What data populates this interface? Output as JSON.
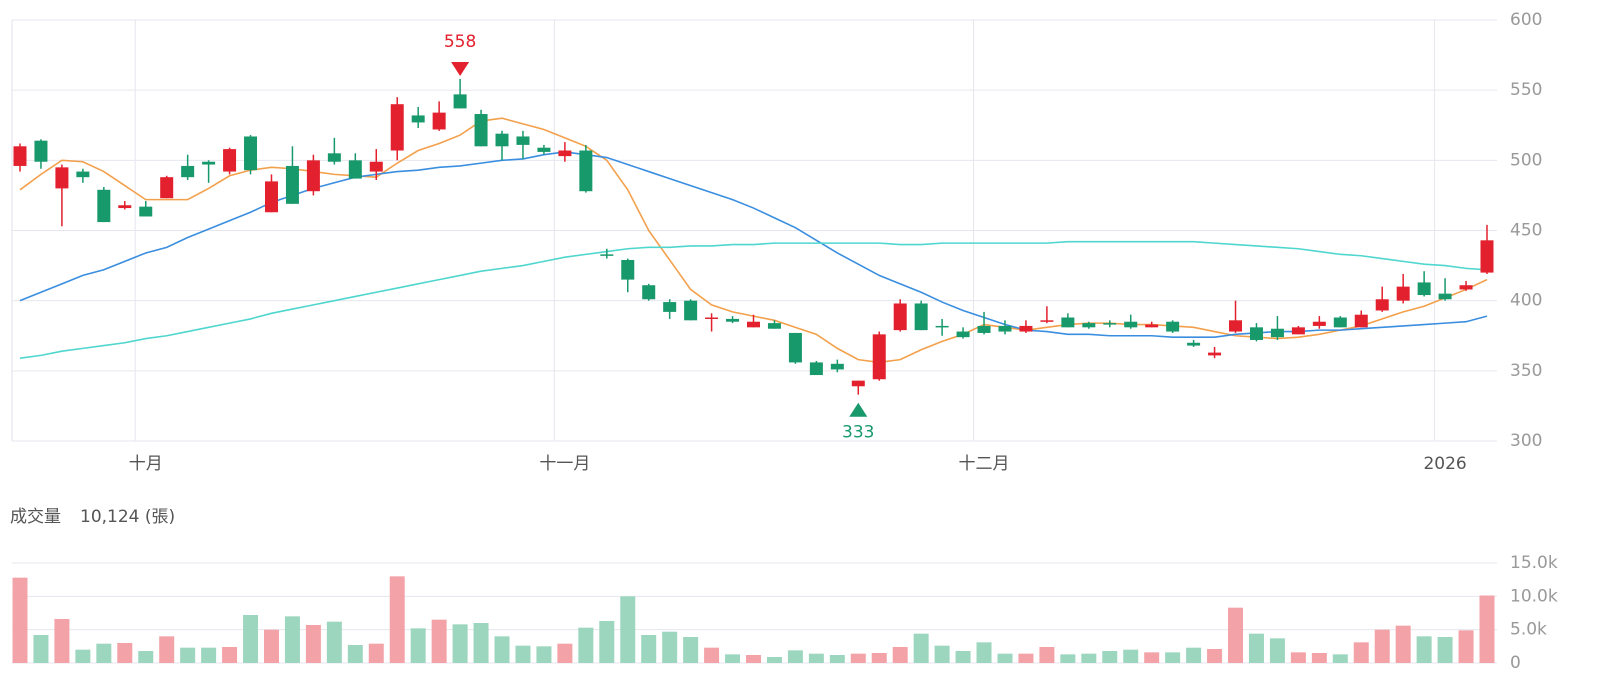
{
  "chart_data": [
    {
      "type": "candlestick",
      "categories": [
        null,
        null,
        null,
        null,
        null,
        null,
        "十月",
        null,
        null,
        null,
        null,
        null,
        null,
        null,
        null,
        null,
        null,
        null,
        null,
        null,
        null,
        null,
        null,
        null,
        null,
        null,
        "十一月",
        null,
        null,
        null,
        null,
        null,
        null,
        null,
        null,
        null,
        null,
        null,
        null,
        null,
        null,
        null,
        null,
        null,
        null,
        null,
        "十二月",
        null,
        null,
        null,
        null,
        null,
        null,
        null,
        null,
        null,
        null,
        null,
        null,
        null,
        null,
        null,
        null,
        null,
        null,
        null,
        null,
        null,
        "2026",
        null,
        null
      ],
      "open": [
        496,
        514,
        480,
        492,
        479,
        466,
        467,
        473,
        496,
        499,
        492,
        517,
        463,
        496,
        478,
        505,
        500,
        492,
        507,
        532,
        522,
        547,
        533,
        519,
        517,
        509,
        503,
        507,
        433,
        429,
        411,
        399,
        400,
        387,
        387,
        381,
        384,
        377,
        356,
        355,
        339,
        344,
        379,
        398,
        382,
        378,
        382,
        382,
        378,
        385,
        388,
        384,
        384,
        385,
        381,
        385,
        370,
        361,
        378,
        381,
        380,
        376,
        382,
        388,
        381,
        393,
        400,
        413,
        405,
        408,
        420
      ],
      "high": [
        512,
        515,
        497,
        494,
        481,
        471,
        471,
        489,
        504,
        500,
        509,
        518,
        490,
        510,
        504,
        516,
        505,
        508,
        545,
        538,
        542,
        558,
        536,
        521,
        521,
        511,
        513,
        511,
        437,
        430,
        412,
        401,
        401,
        391,
        389,
        390,
        386,
        377,
        357,
        358,
        343,
        378,
        401,
        400,
        387,
        381,
        392,
        386,
        386,
        396,
        391,
        385,
        386,
        390,
        385,
        386,
        372,
        367,
        400,
        384,
        389,
        382,
        389,
        389,
        393,
        410,
        419,
        421,
        416,
        414,
        454
      ],
      "low": [
        492,
        494,
        453,
        484,
        456,
        465,
        460,
        473,
        486,
        484,
        490,
        490,
        463,
        469,
        475,
        497,
        487,
        486,
        500,
        523,
        521,
        537,
        510,
        500,
        501,
        504,
        499,
        477,
        430,
        406,
        400,
        387,
        386,
        378,
        384,
        381,
        380,
        355,
        347,
        349,
        333,
        343,
        378,
        379,
        375,
        373,
        376,
        376,
        377,
        384,
        381,
        380,
        381,
        380,
        381,
        377,
        367,
        359,
        377,
        371,
        372,
        376,
        380,
        381,
        381,
        392,
        398,
        403,
        400,
        407,
        419
      ],
      "close": [
        510,
        499,
        495,
        488,
        456,
        468,
        460,
        488,
        488,
        497,
        508,
        493,
        485,
        469,
        500,
        499,
        487,
        499,
        540,
        527,
        534,
        537,
        510,
        510,
        511,
        506,
        507,
        478,
        432,
        415,
        401,
        392,
        386,
        388,
        385,
        385,
        380,
        356,
        347,
        351,
        343,
        376,
        398,
        379,
        381,
        374,
        377,
        378,
        382,
        386,
        381,
        381,
        383,
        381,
        383,
        378,
        368,
        363,
        386,
        372,
        374,
        381,
        385,
        381,
        390,
        401,
        410,
        404,
        401,
        411,
        443
      ],
      "up_color": "#e3202d",
      "down_color": "#17996b",
      "series": [
        {
          "color": "#f3a04c",
          "values": [
            479,
            490,
            500,
            499,
            492,
            482,
            472,
            472,
            472,
            480,
            489,
            493,
            495,
            494,
            492,
            490,
            489,
            488,
            498,
            507,
            512,
            518,
            528,
            530,
            526,
            522,
            516,
            510,
            500,
            479,
            450,
            429,
            408,
            397,
            392,
            389,
            386,
            381,
            376,
            366,
            358,
            356,
            358,
            365,
            371,
            376,
            383,
            381,
            379,
            381,
            383,
            384,
            384,
            383,
            383,
            382,
            381,
            378,
            375,
            374,
            373,
            374,
            376,
            379,
            382,
            387,
            392,
            396,
            402,
            408,
            415
          ]
        },
        {
          "color": "#3a8ee0",
          "values": [
            400,
            406,
            412,
            418,
            422,
            428,
            434,
            438,
            445,
            451,
            457,
            463,
            470,
            475,
            480,
            484,
            488,
            490,
            492,
            493,
            495,
            496,
            498,
            500,
            501,
            504,
            506,
            504,
            502,
            497,
            492,
            487,
            482,
            477,
            472,
            466,
            459,
            452,
            443,
            434,
            426,
            418,
            412,
            406,
            399,
            393,
            388,
            383,
            379,
            378,
            376,
            376,
            375,
            375,
            375,
            374,
            374,
            374,
            376,
            377,
            378,
            378,
            379,
            379,
            380,
            381,
            382,
            383,
            384,
            385,
            389
          ]
        },
        {
          "color": "#4fd6cf",
          "values": [
            359,
            361,
            364,
            366,
            368,
            370,
            373,
            375,
            378,
            381,
            384,
            387,
            391,
            394,
            397,
            400,
            403,
            406,
            409,
            412,
            415,
            418,
            421,
            423,
            425,
            428,
            431,
            433,
            435,
            437,
            438,
            438,
            439,
            439,
            440,
            440,
            441,
            441,
            441,
            441,
            441,
            441,
            440,
            440,
            441,
            441,
            441,
            441,
            441,
            441,
            442,
            442,
            442,
            442,
            442,
            442,
            442,
            441,
            440,
            439,
            438,
            437,
            435,
            433,
            432,
            430,
            428,
            426,
            425,
            423,
            422
          ]
        }
      ],
      "ylim": [
        300,
        600
      ],
      "yticks": [
        300,
        350,
        400,
        450,
        500,
        550,
        600
      ],
      "grid": true,
      "max_label": 558,
      "min_label": 333
    },
    {
      "type": "bar",
      "title": "成交量",
      "subtitle": "10,124 (張)",
      "values": [
        12800,
        4200,
        6600,
        2000,
        2900,
        3000,
        1800,
        4000,
        2300,
        2300,
        2400,
        7200,
        5000,
        7000,
        5700,
        6200,
        2700,
        2900,
        13000,
        5200,
        6500,
        5800,
        6000,
        4000,
        2600,
        2500,
        2900,
        5300,
        6300,
        10000,
        4200,
        4700,
        3900,
        2300,
        1300,
        1200,
        900,
        1900,
        1400,
        1200,
        1400,
        1500,
        2400,
        4400,
        2600,
        1800,
        3100,
        1400,
        1400,
        2400,
        1300,
        1400,
        1800,
        2000,
        1600,
        1600,
        2300,
        2100,
        8300,
        4400,
        3700,
        1600,
        1500,
        1300,
        3100,
        5000,
        5600,
        4000,
        3900,
        4900,
        10124
      ],
      "up_color": "#f3a3a8",
      "down_color": "#9dd6bf",
      "ylim": [
        0,
        15000
      ],
      "yticks": [
        0,
        {
          "value": 5000,
          "label": "5.0k"
        },
        {
          "value": 10000,
          "label": "10.0k"
        },
        {
          "value": 15000,
          "label": "15.0k"
        }
      ],
      "grid": true
    }
  ]
}
